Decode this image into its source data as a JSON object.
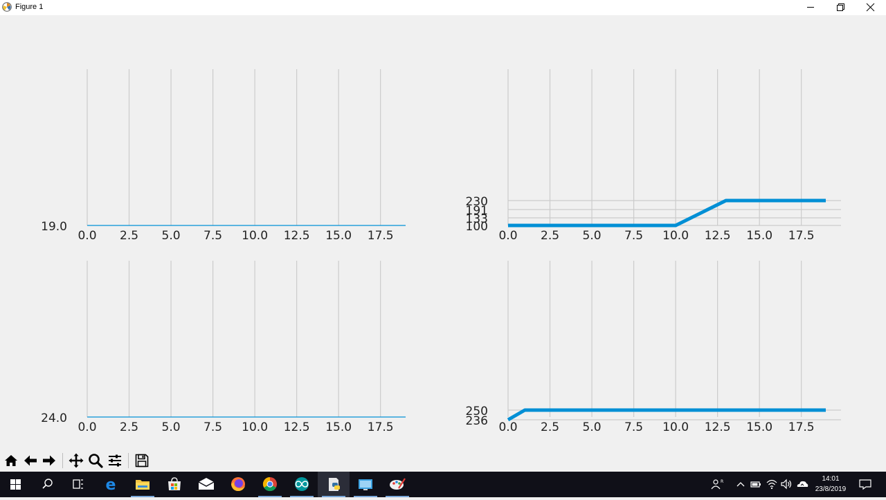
{
  "window": {
    "title": "Figure 1",
    "icons": [
      "matplotlib-logo-icon",
      "minimize-icon",
      "maximize-icon",
      "close-icon"
    ]
  },
  "toolbar": {
    "buttons": [
      "home-icon",
      "back-arrow-icon",
      "forward-arrow-icon",
      "pan-icon",
      "zoom-icon",
      "configure-subplots-icon",
      "save-icon"
    ]
  },
  "chart_data": [
    {
      "type": "line",
      "x_ticks": [
        "0.0",
        "2.5",
        "5.0",
        "7.5",
        "10.0",
        "12.5",
        "15.0",
        "17.5"
      ],
      "y_ticks": [
        "19.0"
      ],
      "xlim": [
        0,
        19
      ],
      "series": [
        {
          "x": [
            0,
            19
          ],
          "y": [
            19.0,
            19.0
          ],
          "line": "thin",
          "color": "#008fd5"
        }
      ],
      "grid": "vertical"
    },
    {
      "type": "line",
      "x_ticks": [
        "0.0",
        "2.5",
        "5.0",
        "7.5",
        "10.0",
        "12.5",
        "15.0",
        "17.5"
      ],
      "y_ticks": [
        "100",
        "133",
        "191",
        "230"
      ],
      "xlim": [
        0,
        19
      ],
      "series": [
        {
          "x": [
            0,
            10,
            13,
            19
          ],
          "y": [
            100,
            100,
            230,
            230
          ],
          "line": "thick",
          "color": "#008fd5"
        }
      ],
      "grid": "both"
    },
    {
      "type": "line",
      "x_ticks": [
        "0.0",
        "2.5",
        "5.0",
        "7.5",
        "10.0",
        "12.5",
        "15.0",
        "17.5"
      ],
      "y_ticks": [
        "24.0"
      ],
      "xlim": [
        0,
        19
      ],
      "series": [
        {
          "x": [
            0,
            19
          ],
          "y": [
            24.0,
            24.0
          ],
          "line": "thin",
          "color": "#008fd5"
        }
      ],
      "grid": "vertical"
    },
    {
      "type": "line",
      "x_ticks": [
        "0.0",
        "2.5",
        "5.0",
        "7.5",
        "10.0",
        "12.5",
        "15.0",
        "17.5"
      ],
      "y_ticks": [
        "236",
        "250"
      ],
      "xlim": [
        0,
        19
      ],
      "series": [
        {
          "x": [
            0,
            1,
            19
          ],
          "y": [
            236,
            250,
            250
          ],
          "line": "thick",
          "color": "#008fd5"
        }
      ],
      "grid": "both"
    }
  ],
  "taskbar": {
    "apps": [
      "windows-start-icon",
      "search-icon",
      "task-view-icon",
      "edge-icon",
      "file-explorer-icon",
      "store-icon",
      "mail-icon",
      "firefox-icon",
      "chrome-icon",
      "arduino-icon",
      "python-icon",
      "remote-desktop-icon",
      "paint-icon"
    ],
    "tray": [
      "people-icon",
      "chevron-up-icon",
      "battery-icon",
      "wifi-icon",
      "volume-icon",
      "onedrive-icon",
      "notifications-icon"
    ],
    "time": "14:01",
    "date": "23/8/2019"
  }
}
